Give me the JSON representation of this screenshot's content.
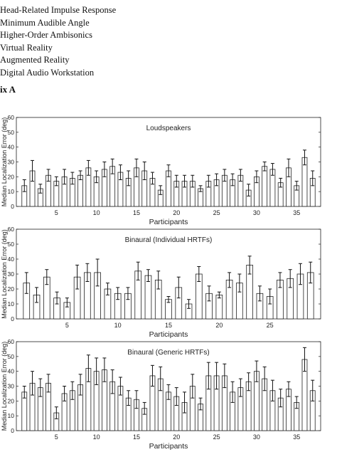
{
  "abbreviations": [
    "Head-Related Impulse Response",
    "Minimum Audible Angle",
    "Higher-Order Ambisonics",
    "Virtual Reality",
    "Augmented Reality",
    "Digital Audio Workstation"
  ],
  "appendix_heading": "ix A",
  "chart_data": [
    {
      "type": "bar",
      "title": "Loudspeakers",
      "xlabel": "Participants",
      "ylabel": "Median Localization Error (deg)",
      "ylim": [
        0,
        60
      ],
      "yticks": [
        0,
        10,
        20,
        30,
        40,
        50,
        60
      ],
      "xticks": [
        5,
        10,
        15,
        20,
        25,
        30,
        35
      ],
      "categories": [
        1,
        2,
        3,
        4,
        5,
        6,
        7,
        8,
        9,
        10,
        11,
        12,
        13,
        14,
        15,
        16,
        17,
        18,
        19,
        20,
        21,
        22,
        23,
        24,
        25,
        26,
        27,
        28,
        29,
        30,
        31,
        32,
        33,
        34,
        35,
        36,
        37
      ],
      "values": [
        14,
        24,
        12,
        21,
        17,
        20,
        19,
        21,
        26,
        20,
        25,
        27,
        23,
        19,
        26,
        24,
        19,
        11,
        24,
        17,
        17,
        17,
        12,
        17,
        18,
        21,
        18,
        21,
        11,
        20,
        27,
        25,
        16,
        26,
        14,
        33,
        19
      ],
      "errors": [
        4,
        7,
        3,
        4,
        3,
        5,
        4,
        3,
        5,
        4,
        5,
        5,
        5,
        5,
        6,
        6,
        4,
        3,
        4,
        4,
        4,
        4,
        2,
        4,
        4,
        4,
        4,
        4,
        4,
        4,
        3,
        4,
        3,
        6,
        3,
        5,
        5
      ]
    },
    {
      "type": "bar",
      "title": "Binaural (Individual HRTFs)",
      "xlabel": "Participants",
      "ylabel": "Median Localization Error (deg)",
      "ylim": [
        0,
        60
      ],
      "yticks": [
        0,
        10,
        20,
        30,
        40,
        50,
        60
      ],
      "xticks": [
        5,
        10,
        15,
        20,
        25
      ],
      "categories": [
        1,
        2,
        3,
        4,
        5,
        6,
        7,
        8,
        9,
        10,
        11,
        12,
        13,
        14,
        15,
        16,
        17,
        18,
        19,
        20,
        21,
        22,
        23,
        24,
        25,
        26,
        27,
        28,
        29
      ],
      "values": [
        24,
        16,
        28,
        14,
        11,
        28,
        31,
        31,
        20,
        17,
        17,
        32,
        29,
        26,
        13,
        21,
        10,
        30,
        17,
        16,
        26,
        24,
        36,
        17,
        15,
        26,
        27,
        30,
        31
      ],
      "errors": [
        7,
        5,
        5,
        4,
        3,
        8,
        6,
        9,
        4,
        4,
        4,
        6,
        4,
        6,
        2,
        7,
        3,
        5,
        5,
        2,
        5,
        6,
        6,
        5,
        5,
        5,
        6,
        7,
        7
      ]
    },
    {
      "type": "bar",
      "title": "Binaural (Generic HRTFs)",
      "xlabel": "Participants",
      "ylabel": "Median Localization Error (deg)",
      "ylim": [
        0,
        60
      ],
      "yticks": [
        0,
        10,
        20,
        30,
        40,
        50,
        60
      ],
      "xticks": [
        5,
        10,
        15,
        20,
        25,
        30,
        35
      ],
      "categories": [
        1,
        2,
        3,
        4,
        5,
        6,
        7,
        8,
        9,
        10,
        11,
        12,
        13,
        14,
        15,
        16,
        17,
        18,
        19,
        20,
        21,
        22,
        23,
        24,
        25,
        26,
        27,
        28,
        29,
        30,
        31,
        32,
        33,
        34,
        35,
        36,
        37
      ],
      "values": [
        26,
        32,
        29,
        32,
        12,
        25,
        27,
        31,
        42,
        40,
        41,
        33,
        30,
        22,
        21,
        15,
        37,
        35,
        26,
        23,
        19,
        30,
        18,
        37,
        37,
        37,
        26,
        29,
        33,
        40,
        35,
        27,
        22,
        28,
        19,
        48,
        27
      ],
      "errors": [
        4,
        8,
        6,
        6,
        4,
        5,
        6,
        7,
        9,
        9,
        8,
        8,
        6,
        5,
        6,
        4,
        7,
        8,
        5,
        6,
        7,
        8,
        4,
        9,
        9,
        8,
        7,
        6,
        6,
        7,
        8,
        7,
        6,
        5,
        4,
        8,
        7
      ]
    }
  ]
}
